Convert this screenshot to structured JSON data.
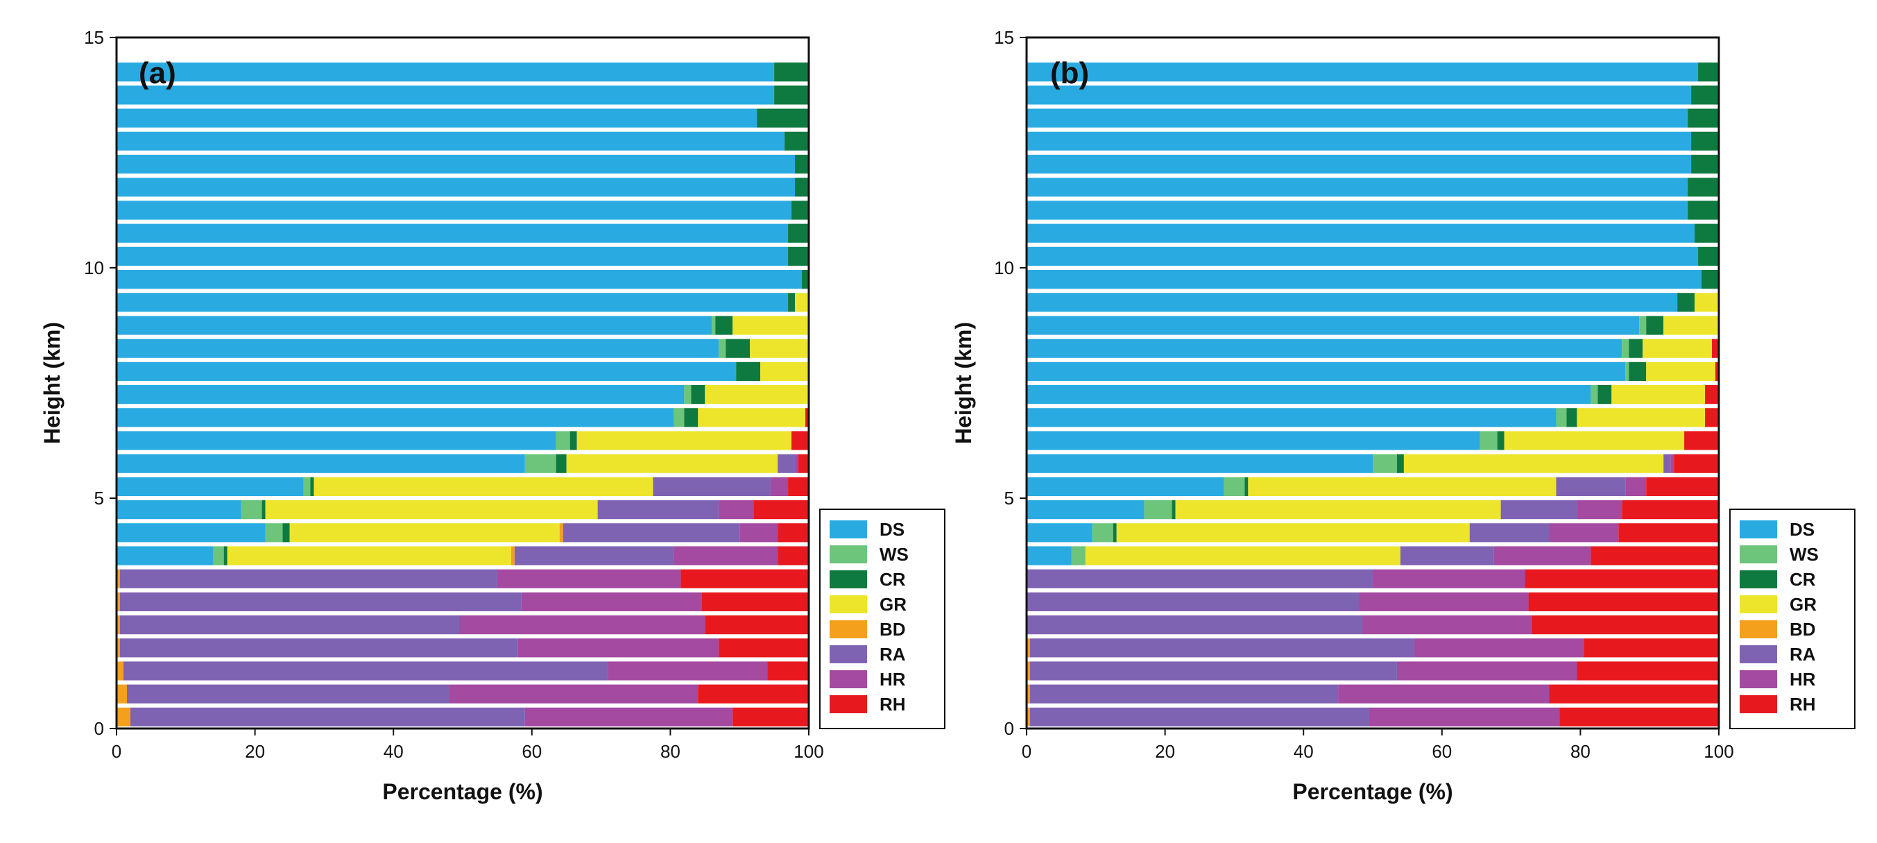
{
  "chart_data": [
    {
      "type": "bar",
      "orientation": "horizontal",
      "stacked": true,
      "panel_label": "(a)",
      "xlabel": "Percentage (%)",
      "ylabel": "Height (km)",
      "xlim": [
        0,
        100
      ],
      "ylim": [
        0,
        15
      ],
      "xticks": [
        "0",
        "20",
        "40",
        "60",
        "80",
        "100"
      ],
      "yticks": [
        "0",
        "5",
        "10",
        "15"
      ],
      "bin_km": 0.5,
      "series_names": [
        "DS",
        "WS",
        "CR",
        "GR",
        "BD",
        "RA",
        "HR",
        "RH"
      ],
      "rows": [
        [
          0,
          0,
          0,
          0,
          2,
          57,
          30,
          11
        ],
        [
          0,
          0,
          0,
          0,
          1.5,
          46.5,
          36,
          16
        ],
        [
          0,
          0,
          0,
          0,
          1,
          70,
          23,
          6
        ],
        [
          0,
          0,
          0,
          0,
          0.5,
          57.5,
          29,
          13
        ],
        [
          0,
          0,
          0,
          0,
          0.5,
          49,
          35.5,
          15
        ],
        [
          0,
          0,
          0,
          0,
          0.5,
          58,
          26,
          15.5
        ],
        [
          0,
          0,
          0,
          0,
          0.5,
          54.5,
          26.5,
          18.5
        ],
        [
          14,
          1.5,
          0.5,
          41,
          0.5,
          23,
          15,
          4.5
        ],
        [
          21.5,
          2.5,
          1,
          39,
          0.5,
          25.5,
          5.5,
          4.5
        ],
        [
          18,
          3,
          0.5,
          48,
          0,
          17.5,
          5,
          8
        ],
        [
          27,
          1,
          0.5,
          49,
          0,
          17,
          2.5,
          3
        ],
        [
          59,
          4.5,
          1.5,
          30.5,
          0,
          2.5,
          0.5,
          1.5
        ],
        [
          63.5,
          2,
          1,
          31,
          0,
          0,
          0,
          2.5
        ],
        [
          80.5,
          1.5,
          2,
          15.5,
          0,
          0,
          0,
          0.5
        ],
        [
          82,
          1,
          2,
          15,
          0,
          0,
          0,
          0
        ],
        [
          89.5,
          0,
          3.5,
          7,
          0,
          0,
          0,
          0
        ],
        [
          87,
          1,
          3.5,
          8.5,
          0,
          0,
          0,
          0
        ],
        [
          86,
          0.5,
          2.5,
          11,
          0,
          0,
          0,
          0
        ],
        [
          97,
          0,
          1,
          2,
          0,
          0,
          0,
          0
        ],
        [
          99,
          0,
          1,
          0,
          0,
          0,
          0,
          0
        ],
        [
          97,
          0,
          3,
          0,
          0,
          0,
          0,
          0
        ],
        [
          97,
          0,
          3,
          0,
          0,
          0,
          0,
          0
        ],
        [
          97.5,
          0,
          2.5,
          0,
          0,
          0,
          0,
          0
        ],
        [
          98,
          0,
          2,
          0,
          0,
          0,
          0,
          0
        ],
        [
          98,
          0,
          2,
          0,
          0,
          0,
          0,
          0
        ],
        [
          96.5,
          0,
          3.5,
          0,
          0,
          0,
          0,
          0
        ],
        [
          92.5,
          0,
          7.5,
          0,
          0,
          0,
          0,
          0
        ],
        [
          95,
          0,
          5,
          0,
          0,
          0,
          0,
          0
        ],
        [
          95,
          0,
          5,
          0,
          0,
          0,
          0,
          0
        ]
      ]
    },
    {
      "type": "bar",
      "orientation": "horizontal",
      "stacked": true,
      "panel_label": "(b)",
      "xlabel": "Percentage (%)",
      "ylabel": "Height (km)",
      "xlim": [
        0,
        100
      ],
      "ylim": [
        0,
        15
      ],
      "xticks": [
        "0",
        "20",
        "40",
        "60",
        "80",
        "100"
      ],
      "yticks": [
        "0",
        "5",
        "10",
        "15"
      ],
      "bin_km": 0.5,
      "series_names": [
        "DS",
        "WS",
        "CR",
        "GR",
        "BD",
        "RA",
        "HR",
        "RH"
      ],
      "rows": [
        [
          0,
          0,
          0,
          0,
          0.5,
          49,
          27.5,
          23
        ],
        [
          0,
          0,
          0,
          0,
          0.5,
          44.5,
          30.5,
          24.5
        ],
        [
          0,
          0,
          0,
          0,
          0.5,
          53,
          26,
          20.5
        ],
        [
          0,
          0,
          0,
          0,
          0.5,
          55.5,
          24.5,
          19.5
        ],
        [
          0,
          0,
          0,
          0,
          0,
          48.5,
          24.5,
          27
        ],
        [
          0,
          0,
          0,
          0,
          0,
          48,
          24.5,
          27.5
        ],
        [
          0,
          0,
          0,
          0,
          0,
          50,
          22,
          28
        ],
        [
          6.5,
          2,
          0,
          45.5,
          0,
          13.5,
          14,
          18.5
        ],
        [
          9.5,
          3,
          0.5,
          51,
          0,
          11.5,
          10,
          14.5
        ],
        [
          17,
          4,
          0.5,
          47,
          0,
          11,
          6.5,
          14
        ],
        [
          28.5,
          3,
          0.5,
          44.5,
          0,
          10,
          3,
          10.5
        ],
        [
          50,
          3.5,
          1,
          37.5,
          0,
          1,
          0.5,
          6.5
        ],
        [
          65.5,
          2.5,
          1,
          26,
          0,
          0,
          0,
          5
        ],
        [
          76.5,
          1.5,
          1.5,
          18.5,
          0,
          0,
          0,
          2
        ],
        [
          81.5,
          1,
          2,
          13.5,
          0,
          0,
          0,
          2
        ],
        [
          86.5,
          0.5,
          2.5,
          10,
          0,
          0,
          0,
          0.5
        ],
        [
          86,
          1,
          2,
          10,
          0,
          0,
          0,
          1
        ],
        [
          88.5,
          1,
          2.5,
          8,
          0,
          0,
          0,
          0
        ],
        [
          94,
          0,
          2.5,
          3.5,
          0,
          0,
          0,
          0
        ],
        [
          97.5,
          0,
          2.5,
          0,
          0,
          0,
          0,
          0
        ],
        [
          97,
          0,
          3,
          0,
          0,
          0,
          0,
          0
        ],
        [
          96.5,
          0,
          3.5,
          0,
          0,
          0,
          0,
          0
        ],
        [
          95.5,
          0,
          4.5,
          0,
          0,
          0,
          0,
          0
        ],
        [
          95.5,
          0,
          4.5,
          0,
          0,
          0,
          0,
          0
        ],
        [
          96,
          0,
          4,
          0,
          0,
          0,
          0,
          0
        ],
        [
          96,
          0,
          4,
          0,
          0,
          0,
          0,
          0
        ],
        [
          95.5,
          0,
          4.5,
          0,
          0,
          0,
          0,
          0
        ],
        [
          96,
          0,
          4,
          0,
          0,
          0,
          0,
          0
        ],
        [
          97,
          0,
          3,
          0,
          0,
          0,
          0,
          0
        ]
      ]
    }
  ],
  "legend": [
    {
      "label": "DS",
      "color": "#29abe2"
    },
    {
      "label": "WS",
      "color": "#6cc57a"
    },
    {
      "label": "CR",
      "color": "#0f7a3f"
    },
    {
      "label": "GR",
      "color": "#ede52b"
    },
    {
      "label": "BD",
      "color": "#f4a01c"
    },
    {
      "label": "RA",
      "color": "#7f63b3"
    },
    {
      "label": "HR",
      "color": "#a44aa0"
    },
    {
      "label": "RH",
      "color": "#e8191e"
    }
  ]
}
